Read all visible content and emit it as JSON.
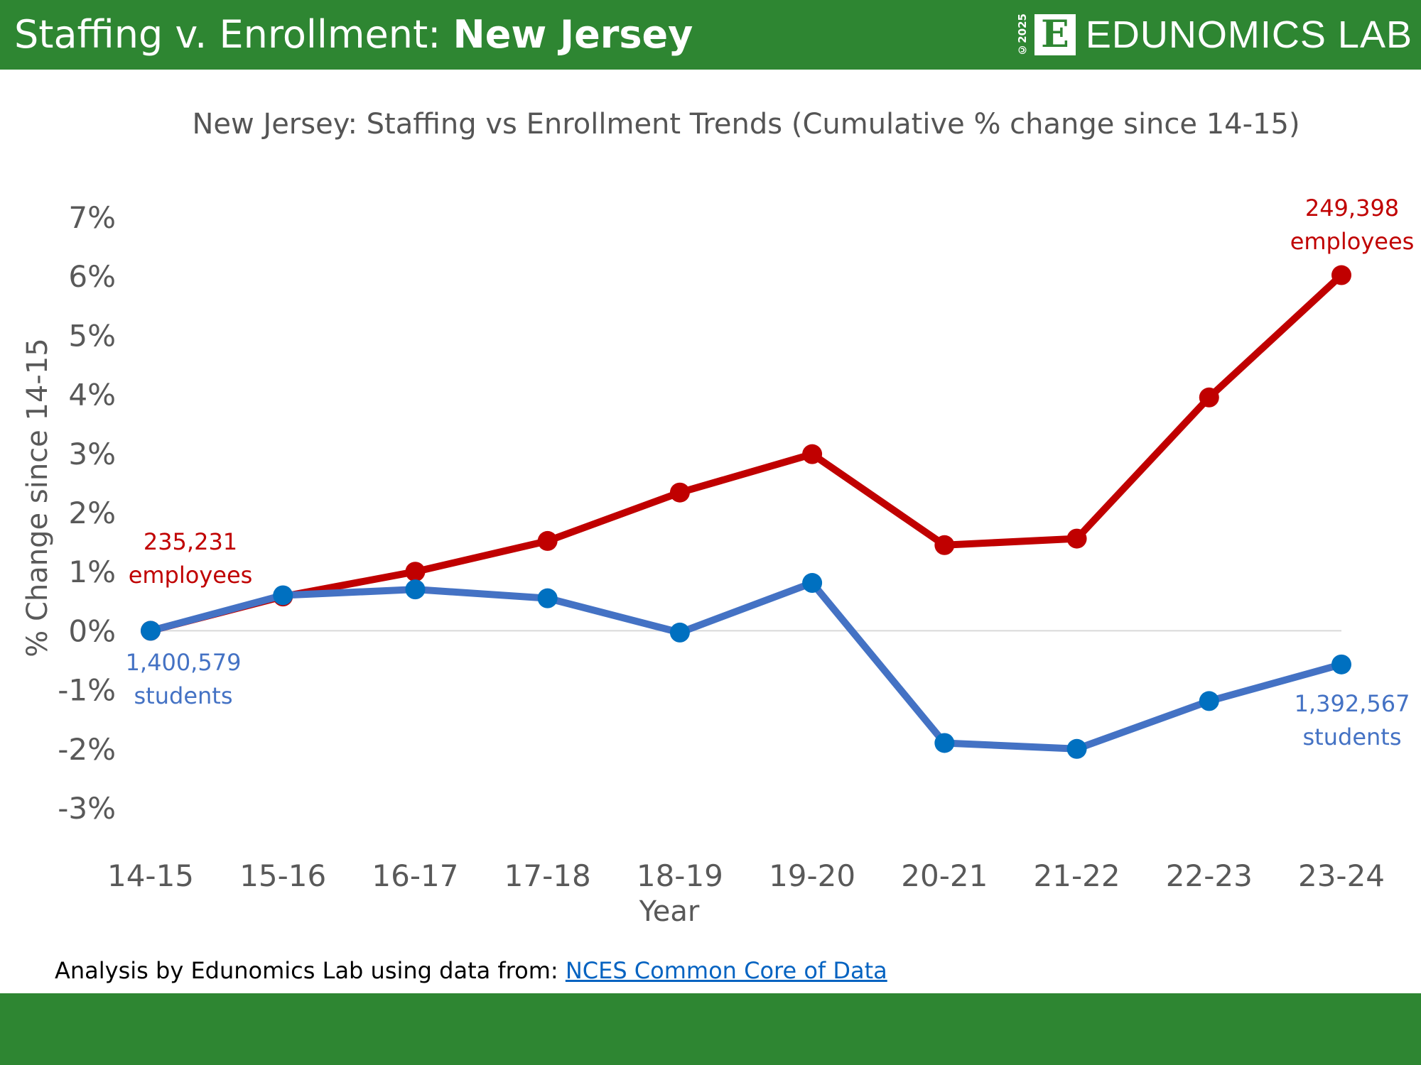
{
  "header": {
    "title_prefix": "Staffing v. Enrollment: ",
    "title_state": "New Jersey",
    "logo_text": "EDUNOMICS LAB",
    "logo_letter": "E",
    "copyright": "©2025"
  },
  "footer": {
    "source_prefix": "Analysis by Edunomics Lab using data from: ",
    "source_link": "NCES Common Core of Data"
  },
  "colors": {
    "brand_green": "#2e8632",
    "employees": "#c00000",
    "students": "#4472c4",
    "student_marker": "#0070c0"
  },
  "chart_data": {
    "type": "line",
    "title": "New Jersey: Staffing vs Enrollment Trends (Cumulative % change since 14-15)",
    "xlabel": "Year",
    "ylabel": "% Change since 14-15",
    "categories": [
      "14-15",
      "15-16",
      "16-17",
      "17-18",
      "18-19",
      "19-20",
      "20-21",
      "21-22",
      "22-23",
      "23-24"
    ],
    "ylim": [
      -3,
      7
    ],
    "yticks": [
      "-3%",
      "-2%",
      "-1%",
      "0%",
      "1%",
      "2%",
      "3%",
      "4%",
      "5%",
      "6%",
      "7%"
    ],
    "grid": false,
    "zero_line": true,
    "series": [
      {
        "key": "employees",
        "values": [
          0,
          0.58,
          1.0,
          1.52,
          2.34,
          2.99,
          1.45,
          1.56,
          3.95,
          6.02
        ]
      },
      {
        "key": "students",
        "values": [
          0,
          0.6,
          0.7,
          0.55,
          -0.03,
          0.81,
          -1.9,
          -2.0,
          -1.19,
          -0.57
        ]
      }
    ],
    "annotations": {
      "employees_start": [
        "235,231",
        "employees"
      ],
      "employees_end": [
        "249,398",
        "employees"
      ],
      "students_start": [
        "1,400,579",
        "students"
      ],
      "students_end": [
        "1,392,567",
        "students"
      ]
    }
  }
}
